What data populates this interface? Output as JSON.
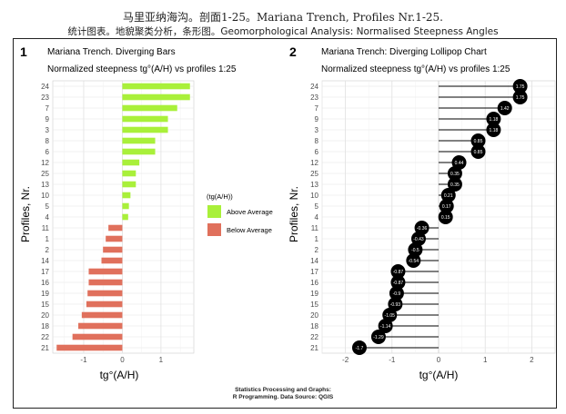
{
  "page": {
    "title": "马里亚纳海沟。剖面1-25。Mariana Trench, Profiles Nr.1-25.",
    "subtitle": "统计图表。地貌聚类分析，条形图。Geomorphological Analysis: Normalised Steepness Angles",
    "footer_line1": "Statistics Processing and Graphs:",
    "footer_line2": "R Programming. Data Source: QGIS"
  },
  "colors": {
    "above": "#a9f03a",
    "below": "#e0705c",
    "panel_bg": "#ffffff",
    "grid": "#e6e6e6",
    "dot": "#000000"
  },
  "chart_data": [
    {
      "type": "bar",
      "orientation": "horizontal",
      "panel_number": "1",
      "title": "Mariana Trench. Diverging Bars",
      "subtitle": "Normalized steepness tg°(A/H) vs profiles 1:25",
      "xlabel": "tg°(A/H)",
      "ylabel": "Profiles, Nr.",
      "xlim": [
        -1.8,
        1.85
      ],
      "xticks": [
        -1,
        0,
        1
      ],
      "grid": true,
      "legend": {
        "title": "(tg(A/H))",
        "placement": "right",
        "items": [
          {
            "label": "Above Average",
            "color": "#a9f03a"
          },
          {
            "label": "Below Average",
            "color": "#e0705c"
          }
        ]
      },
      "categories": [
        "24",
        "23",
        "7",
        "9",
        "3",
        "8",
        "6",
        "12",
        "25",
        "13",
        "10",
        "5",
        "4",
        "11",
        "1",
        "2",
        "14",
        "17",
        "16",
        "19",
        "15",
        "20",
        "18",
        "22",
        "21"
      ],
      "values": [
        1.75,
        1.75,
        1.42,
        1.18,
        1.18,
        0.85,
        0.85,
        0.44,
        0.35,
        0.35,
        0.21,
        0.17,
        0.15,
        -0.36,
        -0.43,
        -0.5,
        -0.54,
        -0.87,
        -0.87,
        -0.9,
        -0.93,
        -1.05,
        -1.14,
        -1.29,
        -1.7
      ]
    },
    {
      "type": "lollipop",
      "orientation": "horizontal",
      "panel_number": "2",
      "title": "Mariana Trench: Diverging Lollipop Chart",
      "subtitle": "Normalized steepness tg°(A/H) vs profiles 1:25",
      "xlabel": "tg°(A/H)",
      "ylabel": "Profiles, Nr.",
      "xlim": [
        -2.5,
        2.5
      ],
      "xticks": [
        -2,
        -1,
        0,
        1,
        2
      ],
      "grid": true,
      "categories": [
        "24",
        "23",
        "7",
        "9",
        "3",
        "8",
        "6",
        "12",
        "25",
        "13",
        "10",
        "5",
        "4",
        "11",
        "1",
        "2",
        "14",
        "17",
        "16",
        "19",
        "15",
        "20",
        "18",
        "22",
        "21"
      ],
      "values": [
        1.75,
        1.75,
        1.42,
        1.18,
        1.18,
        0.85,
        0.85,
        0.44,
        0.35,
        0.35,
        0.21,
        0.17,
        0.15,
        -0.36,
        -0.43,
        -0.5,
        -0.54,
        -0.87,
        -0.87,
        -0.9,
        -0.93,
        -1.05,
        -1.14,
        -1.29,
        -1.7
      ],
      "value_labels": [
        "1.75",
        "1.75",
        "1.42",
        "1.18",
        "1.18",
        "0.85",
        "0.85",
        "0.44",
        "0.35",
        "0.35",
        "0.21",
        "0.17",
        "0.15",
        "-0.36",
        "-0.43",
        "-0.5",
        "-0.54",
        "-0.87",
        "-0.87",
        "-0.9",
        "-0.93",
        "-1.05",
        "-1.14",
        "-1.29",
        "-1.7"
      ]
    }
  ]
}
